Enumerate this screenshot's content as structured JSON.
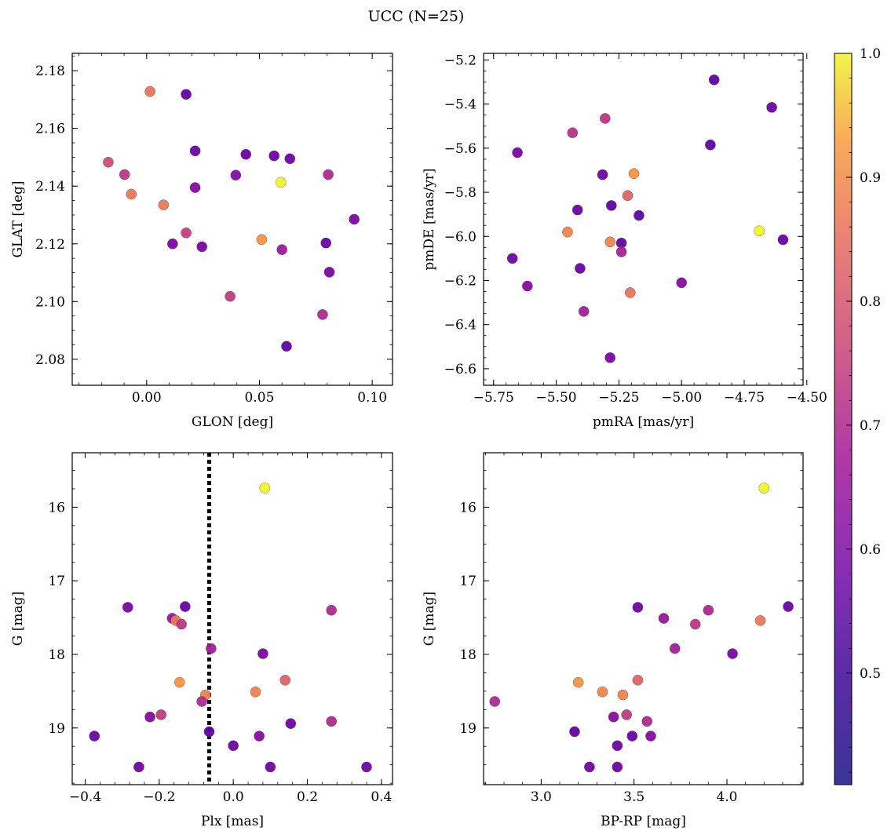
{
  "title": "UCC (N=25)",
  "chart_data": [
    {
      "type": "scatter",
      "xlabel": "GLON [deg]",
      "ylabel": "GLAT [deg]",
      "xlim": [
        -0.033,
        0.109
      ],
      "ylim": [
        2.071,
        2.186
      ],
      "xticks": [
        0.0,
        0.05,
        0.1
      ],
      "xtick_labels": [
        "0.00",
        "0.05",
        "0.10"
      ],
      "yticks": [
        2.08,
        2.1,
        2.12,
        2.14,
        2.16,
        2.18
      ],
      "ytick_labels": [
        "2.08",
        "2.10",
        "2.12",
        "2.14",
        "2.16",
        "2.18"
      ],
      "points": [
        {
          "x": 0.0015,
          "y": 2.1728,
          "p": 0.77
        },
        {
          "x": 0.0175,
          "y": 2.1718,
          "p": 0.45
        },
        {
          "x": -0.017,
          "y": 2.1483,
          "p": 0.68
        },
        {
          "x": -0.0098,
          "y": 2.144,
          "p": 0.63
        },
        {
          "x": -0.0068,
          "y": 2.1372,
          "p": 0.78
        },
        {
          "x": 0.0075,
          "y": 2.1335,
          "p": 0.78
        },
        {
          "x": 0.0215,
          "y": 2.1522,
          "p": 0.47
        },
        {
          "x": 0.0215,
          "y": 2.1395,
          "p": 0.52
        },
        {
          "x": 0.044,
          "y": 2.151,
          "p": 0.47
        },
        {
          "x": 0.0565,
          "y": 2.1505,
          "p": 0.48
        },
        {
          "x": 0.0635,
          "y": 2.1495,
          "p": 0.48
        },
        {
          "x": 0.0395,
          "y": 2.1438,
          "p": 0.52
        },
        {
          "x": 0.0595,
          "y": 2.1413,
          "p": 1.0
        },
        {
          "x": 0.0805,
          "y": 2.144,
          "p": 0.6
        },
        {
          "x": 0.0175,
          "y": 2.1238,
          "p": 0.65
        },
        {
          "x": 0.0115,
          "y": 2.12,
          "p": 0.5
        },
        {
          "x": 0.0245,
          "y": 2.119,
          "p": 0.5
        },
        {
          "x": 0.051,
          "y": 2.1215,
          "p": 0.83
        },
        {
          "x": 0.06,
          "y": 2.118,
          "p": 0.56
        },
        {
          "x": 0.0795,
          "y": 2.1203,
          "p": 0.47
        },
        {
          "x": 0.092,
          "y": 2.1285,
          "p": 0.5
        },
        {
          "x": 0.081,
          "y": 2.1102,
          "p": 0.5
        },
        {
          "x": 0.037,
          "y": 2.1018,
          "p": 0.64
        },
        {
          "x": 0.078,
          "y": 2.0955,
          "p": 0.6
        },
        {
          "x": 0.062,
          "y": 2.0845,
          "p": 0.45
        }
      ]
    },
    {
      "type": "scatter",
      "xlabel": "pmRA [mas/yr]",
      "ylabel": "pmDE [mas/yr]",
      "xlim": [
        -5.79,
        -4.515
      ],
      "ylim": [
        -6.675,
        -5.17
      ],
      "xticks": [
        -5.75,
        -5.5,
        -5.25,
        -5.0,
        -4.75,
        -4.5
      ],
      "xtick_labels": [
        "−5.75",
        "−5.50",
        "−5.25",
        "−5.00",
        "−4.75",
        "−4.50"
      ],
      "yticks": [
        -6.6,
        -6.4,
        -6.2,
        -6.0,
        -5.8,
        -5.6,
        -5.4,
        -5.2
      ],
      "ytick_labels": [
        "−6.6",
        "−6.4",
        "−6.2",
        "−6.0",
        "−5.8",
        "−5.6",
        "−5.4",
        "−5.2"
      ],
      "points": [
        {
          "x": -4.87,
          "y": -5.29,
          "p": 0.45
        },
        {
          "x": -4.64,
          "y": -5.415,
          "p": 0.47
        },
        {
          "x": -5.305,
          "y": -5.465,
          "p": 0.63
        },
        {
          "x": -5.435,
          "y": -5.53,
          "p": 0.62
        },
        {
          "x": -5.655,
          "y": -5.62,
          "p": 0.5
        },
        {
          "x": -4.885,
          "y": -5.585,
          "p": 0.45
        },
        {
          "x": -5.315,
          "y": -5.72,
          "p": 0.48
        },
        {
          "x": -5.19,
          "y": -5.715,
          "p": 0.83
        },
        {
          "x": -5.215,
          "y": -5.815,
          "p": 0.73
        },
        {
          "x": -5.28,
          "y": -5.86,
          "p": 0.45
        },
        {
          "x": -5.415,
          "y": -5.88,
          "p": 0.47
        },
        {
          "x": -5.17,
          "y": -5.905,
          "p": 0.45
        },
        {
          "x": -5.455,
          "y": -5.98,
          "p": 0.8
        },
        {
          "x": -4.69,
          "y": -5.975,
          "p": 1.0
        },
        {
          "x": -5.285,
          "y": -6.025,
          "p": 0.8
        },
        {
          "x": -5.24,
          "y": -6.03,
          "p": 0.46
        },
        {
          "x": -5.24,
          "y": -6.07,
          "p": 0.58
        },
        {
          "x": -4.595,
          "y": -6.015,
          "p": 0.47
        },
        {
          "x": -5.675,
          "y": -6.1,
          "p": 0.48
        },
        {
          "x": -5.405,
          "y": -6.145,
          "p": 0.47
        },
        {
          "x": -5.615,
          "y": -6.225,
          "p": 0.52
        },
        {
          "x": -5.0,
          "y": -6.21,
          "p": 0.52
        },
        {
          "x": -5.205,
          "y": -6.255,
          "p": 0.77
        },
        {
          "x": -5.39,
          "y": -6.34,
          "p": 0.57
        },
        {
          "x": -5.285,
          "y": -6.55,
          "p": 0.5
        }
      ]
    },
    {
      "type": "scatter",
      "xlabel": "Plx [mas]",
      "ylabel": "G [mag]",
      "xlim": [
        -0.435,
        0.43
      ],
      "ylim": [
        19.77,
        15.26
      ],
      "xticks": [
        -0.4,
        -0.2,
        0.0,
        0.2,
        0.4
      ],
      "xtick_labels": [
        "−0.4",
        "−0.2",
        "0.0",
        "0.2",
        "0.4"
      ],
      "yticks": [
        16,
        17,
        18,
        19
      ],
      "ytick_labels": [
        "16",
        "17",
        "18",
        "19"
      ],
      "vline": -0.065,
      "points": [
        {
          "x": 0.085,
          "y": 15.74,
          "p": 1.0
        },
        {
          "x": -0.285,
          "y": 17.36,
          "p": 0.5
        },
        {
          "x": -0.13,
          "y": 17.35,
          "p": 0.47
        },
        {
          "x": -0.165,
          "y": 17.51,
          "p": 0.55
        },
        {
          "x": -0.155,
          "y": 17.54,
          "p": 0.78
        },
        {
          "x": -0.14,
          "y": 17.59,
          "p": 0.63
        },
        {
          "x": 0.265,
          "y": 17.4,
          "p": 0.6
        },
        {
          "x": -0.06,
          "y": 17.92,
          "p": 0.57
        },
        {
          "x": 0.08,
          "y": 17.99,
          "p": 0.5
        },
        {
          "x": -0.145,
          "y": 18.38,
          "p": 0.83
        },
        {
          "x": 0.14,
          "y": 18.35,
          "p": 0.73
        },
        {
          "x": 0.06,
          "y": 18.51,
          "p": 0.8
        },
        {
          "x": -0.075,
          "y": 18.55,
          "p": 0.8
        },
        {
          "x": -0.085,
          "y": 18.64,
          "p": 0.6
        },
        {
          "x": -0.225,
          "y": 18.85,
          "p": 0.52
        },
        {
          "x": -0.195,
          "y": 18.82,
          "p": 0.64
        },
        {
          "x": 0.265,
          "y": 18.91,
          "p": 0.6
        },
        {
          "x": 0.155,
          "y": 18.94,
          "p": 0.48
        },
        {
          "x": -0.065,
          "y": 19.05,
          "p": 0.45
        },
        {
          "x": -0.375,
          "y": 19.11,
          "p": 0.47
        },
        {
          "x": 0.07,
          "y": 19.11,
          "p": 0.52
        },
        {
          "x": 0.0,
          "y": 19.24,
          "p": 0.47
        },
        {
          "x": -0.255,
          "y": 19.53,
          "p": 0.48
        },
        {
          "x": 0.1,
          "y": 19.53,
          "p": 0.48
        },
        {
          "x": 0.36,
          "y": 19.53,
          "p": 0.48
        }
      ]
    },
    {
      "type": "scatter",
      "xlabel": "BP-RP [mag]",
      "ylabel": "G [mag]",
      "xlim": [
        2.69,
        4.41
      ],
      "ylim": [
        19.77,
        15.26
      ],
      "xticks": [
        3.0,
        3.5,
        4.0
      ],
      "xtick_labels": [
        "3.0",
        "3.5",
        "4.0"
      ],
      "yticks": [
        16,
        17,
        18,
        19
      ],
      "ytick_labels": [
        "16",
        "17",
        "18",
        "19"
      ],
      "points": [
        {
          "x": 4.2,
          "y": 15.74,
          "p": 1.0
        },
        {
          "x": 3.52,
          "y": 17.36,
          "p": 0.48
        },
        {
          "x": 4.33,
          "y": 17.35,
          "p": 0.47
        },
        {
          "x": 3.66,
          "y": 17.51,
          "p": 0.55
        },
        {
          "x": 3.9,
          "y": 17.4,
          "p": 0.6
        },
        {
          "x": 4.18,
          "y": 17.54,
          "p": 0.78
        },
        {
          "x": 3.83,
          "y": 17.59,
          "p": 0.63
        },
        {
          "x": 3.72,
          "y": 17.92,
          "p": 0.57
        },
        {
          "x": 4.03,
          "y": 17.99,
          "p": 0.5
        },
        {
          "x": 3.2,
          "y": 18.38,
          "p": 0.83
        },
        {
          "x": 3.52,
          "y": 18.35,
          "p": 0.73
        },
        {
          "x": 3.33,
          "y": 18.51,
          "p": 0.8
        },
        {
          "x": 3.44,
          "y": 18.55,
          "p": 0.8
        },
        {
          "x": 2.75,
          "y": 18.64,
          "p": 0.6
        },
        {
          "x": 3.39,
          "y": 18.85,
          "p": 0.52
        },
        {
          "x": 3.46,
          "y": 18.82,
          "p": 0.64
        },
        {
          "x": 3.57,
          "y": 18.91,
          "p": 0.6
        },
        {
          "x": 3.18,
          "y": 19.05,
          "p": 0.45
        },
        {
          "x": 3.49,
          "y": 19.11,
          "p": 0.47
        },
        {
          "x": 3.59,
          "y": 19.11,
          "p": 0.52
        },
        {
          "x": 3.41,
          "y": 19.24,
          "p": 0.47
        },
        {
          "x": 3.26,
          "y": 19.53,
          "p": 0.48
        },
        {
          "x": 3.41,
          "y": 19.53,
          "p": 0.48
        }
      ]
    }
  ],
  "colorbar": {
    "min": 0.41,
    "max": 1.0,
    "ticks": [
      0.5,
      0.6,
      0.7,
      0.8,
      0.9,
      1.0
    ],
    "tick_labels": [
      "0.5",
      "0.6",
      "0.7",
      "0.8",
      "0.9",
      "1.0"
    ],
    "colormap": "plasma"
  }
}
